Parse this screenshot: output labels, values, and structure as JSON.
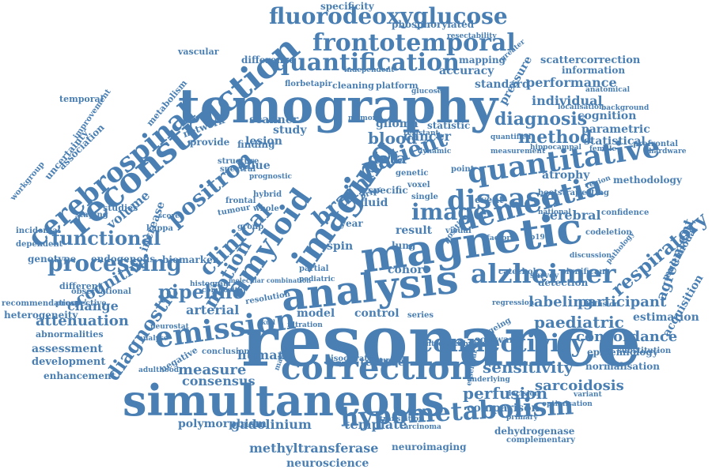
{
  "colors": {
    "word": "#4a7fb3",
    "background": "#ffffff"
  },
  "words": [
    {
      "t": "resonance",
      "size": 88
    },
    {
      "t": "tomography",
      "size": 60
    },
    {
      "t": "simultaneous",
      "size": 54
    },
    {
      "t": "magnetic",
      "size": 54
    },
    {
      "t": "analysis",
      "size": 50
    },
    {
      "t": "reconstruction",
      "size": 44
    },
    {
      "t": "imaging",
      "size": 42
    },
    {
      "t": "correction",
      "size": 42
    },
    {
      "t": "quantitative",
      "size": 36
    },
    {
      "t": "amyloid",
      "size": 36
    },
    {
      "t": "dementia",
      "size": 36
    },
    {
      "t": "emission",
      "size": 36
    },
    {
      "t": "cerebrospinal",
      "size": 34
    },
    {
      "t": "disease",
      "size": 34
    },
    {
      "t": "alzheimer",
      "size": 33
    },
    {
      "t": "hypometabolism",
      "size": 32
    },
    {
      "t": "connectivity",
      "size": 31
    },
    {
      "t": "frontotemporal",
      "size": 30
    },
    {
      "t": "quantification",
      "size": 30
    },
    {
      "t": "fluorodeoxyglucose",
      "size": 28
    },
    {
      "t": "processing",
      "size": 28
    },
    {
      "t": "positron",
      "size": 28
    },
    {
      "t": "clinical",
      "size": 28
    },
    {
      "t": "image",
      "size": 28
    },
    {
      "t": "brain",
      "size": 28
    },
    {
      "t": "patient",
      "size": 28
    },
    {
      "t": "functional",
      "size": 24
    },
    {
      "t": "motion",
      "size": 24
    },
    {
      "t": "diagnostic",
      "size": 24
    },
    {
      "t": "pipeline",
      "size": 24
    },
    {
      "t": "respiratory",
      "size": 24
    },
    {
      "t": "diagnosis",
      "size": 22
    },
    {
      "t": "method",
      "size": 22
    },
    {
      "t": "blood",
      "size": 20
    },
    {
      "t": "cognitive",
      "size": 20
    },
    {
      "t": "data",
      "size": 20
    },
    {
      "t": "perfusion",
      "size": 20
    },
    {
      "t": "sensitivity",
      "size": 20
    },
    {
      "t": "paediatric",
      "size": 20
    },
    {
      "t": "labeling",
      "size": 18
    },
    {
      "t": "participant",
      "size": 18
    },
    {
      "t": "concordance",
      "size": 18
    },
    {
      "t": "attenuation",
      "size": 18
    },
    {
      "t": "sarcoidosis",
      "size": 18
    },
    {
      "t": "agreement",
      "size": 18
    },
    {
      "t": "measure",
      "size": 18
    },
    {
      "t": "cerebral",
      "size": 16
    },
    {
      "t": "arterial",
      "size": 16
    },
    {
      "t": "individual",
      "size": 16
    },
    {
      "t": "performance",
      "size": 16
    },
    {
      "t": "gadolinium",
      "size": 16
    },
    {
      "t": "template",
      "size": 16
    },
    {
      "t": "cancer",
      "size": 16
    },
    {
      "t": "change",
      "size": 16
    },
    {
      "t": "consensus",
      "size": 16
    },
    {
      "t": "accuracy",
      "size": 14
    },
    {
      "t": "standard",
      "size": 14
    },
    {
      "t": "scanner",
      "size": 14
    },
    {
      "t": "lesion",
      "size": 14
    },
    {
      "t": "study",
      "size": 14
    },
    {
      "t": "glioma",
      "size": 14
    },
    {
      "t": "statistic",
      "size": 12
    },
    {
      "t": "cognition",
      "size": 14
    },
    {
      "t": "parametric",
      "size": 14
    },
    {
      "t": "statistical",
      "size": 14
    },
    {
      "t": "pressure",
      "size": 14
    },
    {
      "t": "information",
      "size": 12
    },
    {
      "t": "mapping",
      "size": 12
    },
    {
      "t": "scattercorrection",
      "size": 13
    },
    {
      "t": "difference",
      "size": 12
    },
    {
      "t": "volume",
      "size": 16
    },
    {
      "t": "increase",
      "size": 14
    },
    {
      "t": "provide",
      "size": 12
    },
    {
      "t": "network",
      "size": 12
    },
    {
      "t": "finding",
      "size": 12
    },
    {
      "t": "value",
      "size": 14
    },
    {
      "t": "result",
      "size": 14
    },
    {
      "t": "cohort",
      "size": 14
    },
    {
      "t": "visual",
      "size": 10
    },
    {
      "t": "fluid",
      "size": 14
    },
    {
      "t": "spin",
      "size": 14
    },
    {
      "t": "year",
      "size": 12
    },
    {
      "t": "model",
      "size": 14
    },
    {
      "t": "control",
      "size": 14
    },
    {
      "t": "human",
      "size": 16
    },
    {
      "t": "texture",
      "size": 14
    },
    {
      "t": "isocitrate",
      "size": 10
    },
    {
      "t": "software",
      "size": 12
    },
    {
      "t": "epidemiology",
      "size": 12
    },
    {
      "t": "normalisation",
      "size": 12
    },
    {
      "t": "substitution",
      "size": 10
    },
    {
      "t": "estimation",
      "size": 14
    },
    {
      "t": "acquisition",
      "size": 14
    },
    {
      "t": "multimodal",
      "size": 12
    },
    {
      "t": "methodology",
      "size": 12
    },
    {
      "t": "confidence",
      "size": 10
    },
    {
      "t": "codeletion",
      "size": 10
    },
    {
      "t": "significant",
      "size": 10
    },
    {
      "t": "detection",
      "size": 12
    },
    {
      "t": "catechol",
      "size": 10
    },
    {
      "t": "survey",
      "size": 10
    },
    {
      "t": "variant",
      "size": 9
    },
    {
      "t": "dehydrogenase",
      "size": 12
    },
    {
      "t": "complementary",
      "size": 10
    },
    {
      "t": "neuroimaging",
      "size": 12
    },
    {
      "t": "neuroscience",
      "size": 14
    },
    {
      "t": "methyltransferase",
      "size": 16
    },
    {
      "t": "polymorphism",
      "size": 14
    },
    {
      "t": "comparison",
      "size": 14
    },
    {
      "t": "bootstrap",
      "size": 10
    },
    {
      "t": "atrophy",
      "size": 14
    },
    {
      "t": "specific",
      "size": 12
    },
    {
      "t": "event",
      "size": 12
    },
    {
      "t": "temporal",
      "size": 11
    },
    {
      "t": "recommendation",
      "size": 10
    },
    {
      "t": "heterogeneity",
      "size": 12
    },
    {
      "t": "abnormalities",
      "size": 11
    },
    {
      "t": "assessment",
      "size": 14
    },
    {
      "t": "development",
      "size": 13
    },
    {
      "t": "enhancement",
      "size": 12
    },
    {
      "t": "observational",
      "size": 10
    },
    {
      "t": "genotype",
      "size": 12
    },
    {
      "t": "endogenous",
      "size": 12
    },
    {
      "t": "biomarker",
      "size": 12
    },
    {
      "t": "different",
      "size": 11
    },
    {
      "t": "workgroup",
      "size": 10
    },
    {
      "t": "association",
      "size": 12
    },
    {
      "t": "uncertainty",
      "size": 12
    },
    {
      "t": "improvement",
      "size": 10
    },
    {
      "t": "metabolism",
      "size": 11
    },
    {
      "t": "specificity",
      "size": 12
    },
    {
      "t": "phosphorylated",
      "size": 12
    },
    {
      "t": "resectability",
      "size": 9
    },
    {
      "t": "independent",
      "size": 9
    },
    {
      "t": "florbetapir",
      "size": 10
    },
    {
      "t": "cleaning",
      "size": 11
    },
    {
      "t": "platform",
      "size": 11
    },
    {
      "t": "vascular",
      "size": 11
    },
    {
      "t": "prognostic",
      "size": 9
    },
    {
      "t": "spectral",
      "size": 10
    },
    {
      "t": "structure",
      "size": 10
    },
    {
      "t": "hybrid",
      "size": 10
    },
    {
      "t": "frontal",
      "size": 10
    },
    {
      "t": "tumour",
      "size": 10
    },
    {
      "t": "whole",
      "size": 10
    },
    {
      "t": "group",
      "size": 10
    },
    {
      "t": "kappa",
      "size": 10
    },
    {
      "t": "score",
      "size": 9
    },
    {
      "t": "studies",
      "size": 11
    },
    {
      "t": "staging",
      "size": 10
    },
    {
      "t": "incidental",
      "size": 10
    },
    {
      "t": "dependent",
      "size": 10
    },
    {
      "t": "prospective",
      "size": 10
    },
    {
      "t": "neurostat",
      "size": 9
    },
    {
      "t": "adulthood",
      "size": 9
    },
    {
      "t": "negative",
      "size": 11
    },
    {
      "t": "conclusion",
      "size": 10
    },
    {
      "t": "resolution",
      "size": 10
    },
    {
      "t": "pediatric",
      "size": 9
    },
    {
      "t": "partial",
      "size": 10
    },
    {
      "t": "series",
      "size": 10
    },
    {
      "t": "point",
      "size": 10
    },
    {
      "t": "voxel",
      "size": 10
    },
    {
      "t": "single",
      "size": 10
    },
    {
      "t": "positive",
      "size": 10
    },
    {
      "t": "genetic",
      "size": 10
    },
    {
      "t": "prior",
      "size": 10
    },
    {
      "t": "lung",
      "size": 12
    },
    {
      "t": "factor",
      "size": 9
    },
    {
      "t": "p19q",
      "size": 9
    },
    {
      "t": "region",
      "size": 9
    },
    {
      "t": "resting",
      "size": 10
    },
    {
      "t": "national",
      "size": 9
    },
    {
      "t": "pathology",
      "size": 9
    },
    {
      "t": "hardware",
      "size": 9
    },
    {
      "t": "female",
      "size": 9
    },
    {
      "t": "prefrontal",
      "size": 10
    },
    {
      "t": "background",
      "size": 9
    },
    {
      "t": "anatomical",
      "size": 9
    },
    {
      "t": "localisation",
      "size": 9
    },
    {
      "t": "hippocampal",
      "size": 9
    },
    {
      "t": "measurement",
      "size": 9
    },
    {
      "t": "quantified",
      "size": 9
    },
    {
      "t": "dynamic",
      "size": 9
    },
    {
      "t": "resistant",
      "size": 9
    },
    {
      "t": "glucose",
      "size": 9
    },
    {
      "t": "memory",
      "size": 9
    },
    {
      "t": "greater",
      "size": 9
    },
    {
      "t": "technical",
      "size": 9
    },
    {
      "t": "underlying",
      "size": 9
    },
    {
      "t": "translation",
      "size": 9
    },
    {
      "t": "primary",
      "size": 9
    },
    {
      "t": "carcinoma",
      "size": 9
    },
    {
      "t": "optimisation",
      "size": 9
    },
    {
      "t": "regression",
      "size": 9
    },
    {
      "t": "diffusion",
      "size": 9
    },
    {
      "t": "surgical",
      "size": 9
    },
    {
      "t": "introduction",
      "size": 9
    },
    {
      "t": "essential",
      "size": 9
    },
    {
      "t": "ageing",
      "size": 10
    },
    {
      "t": "histogram",
      "size": 9
    },
    {
      "t": "composite",
      "size": 9
    },
    {
      "t": "filtration",
      "size": 9
    },
    {
      "t": "making",
      "size": 9
    },
    {
      "t": "analyse",
      "size": 9
    },
    {
      "t": "decision",
      "size": 9
    },
    {
      "t": "discussion",
      "size": 9
    },
    {
      "t": "molecular combination",
      "size": 8
    },
    {
      "t": "skull",
      "size": 8
    }
  ]
}
